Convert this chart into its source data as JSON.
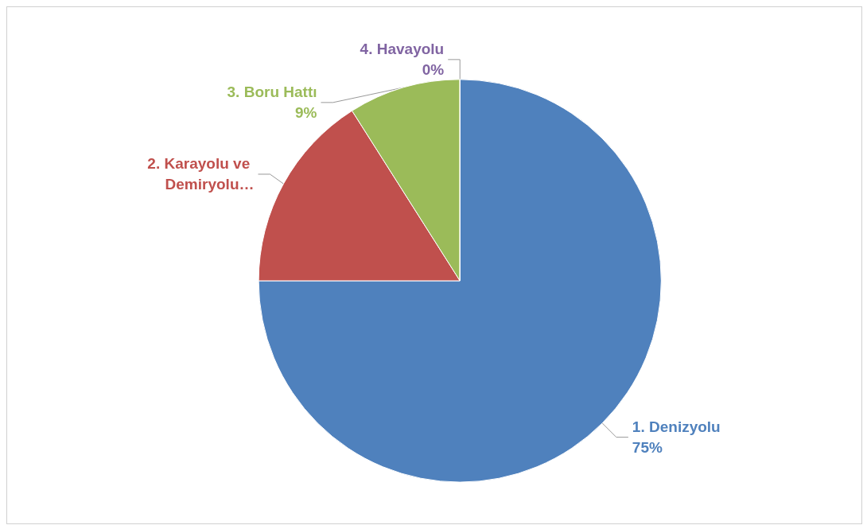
{
  "chart_data": {
    "type": "pie",
    "categories": [
      "1. Denizyolu",
      "2. Karayolu ve Demiryolu…",
      "3. Boru Hattı",
      "4. Havayolu"
    ],
    "values": [
      75,
      16,
      9,
      0
    ],
    "value_labels": [
      "75%",
      null,
      "9%",
      "0%"
    ],
    "colors": [
      "#4f81bd",
      "#c0504d",
      "#9bbb59",
      "#8064a2"
    ],
    "legend": false
  }
}
